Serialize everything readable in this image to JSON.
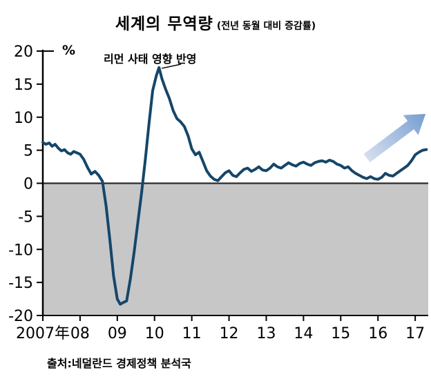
{
  "colors": {
    "line": "#15466a",
    "negative_region": "#c7c7c7",
    "axis": "#000000",
    "zero_line": "#2b2b2b",
    "arrow_tail": "#cdd9ec",
    "arrow_head": "#6e97cd",
    "text": "#000000"
  },
  "chart_data": {
    "type": "line",
    "title": "세계의 무역량",
    "subtitle": "(전년 동월 대비 증감률)",
    "ylabel_unit": "%",
    "annotation": "리먼 사태 영향 반영",
    "source": "출처:네덜란드 경제정책 분석국",
    "grid": false,
    "negative_region_shaded": true,
    "xlim": [
      2007,
      2017.35
    ],
    "ylim": [
      -20,
      20
    ],
    "yticks": [
      20,
      15,
      10,
      5,
      0,
      -5,
      -10,
      -15,
      -20
    ],
    "x_ticks": [
      {
        "pos": 2007,
        "label": "2007年"
      },
      {
        "pos": 2008,
        "label": "08"
      },
      {
        "pos": 2009,
        "label": "09"
      },
      {
        "pos": 2010,
        "label": "10"
      },
      {
        "pos": 2011,
        "label": "11"
      },
      {
        "pos": 2012,
        "label": "12"
      },
      {
        "pos": 2013,
        "label": "13"
      },
      {
        "pos": 2014,
        "label": "14"
      },
      {
        "pos": 2015,
        "label": "15"
      },
      {
        "pos": 2016,
        "label": "16"
      },
      {
        "pos": 2017,
        "label": "17"
      }
    ],
    "trend_arrow": {
      "from": [
        2015.7,
        3.8
      ],
      "to": [
        2017.28,
        10.5
      ]
    },
    "series": [
      {
        "name": "세계 무역량 전년 동월 대비 증감률(%)",
        "points": [
          [
            2007.0,
            6.2
          ],
          [
            2007.08,
            5.9
          ],
          [
            2007.17,
            6.1
          ],
          [
            2007.25,
            5.6
          ],
          [
            2007.33,
            5.9
          ],
          [
            2007.42,
            5.3
          ],
          [
            2007.5,
            4.9
          ],
          [
            2007.58,
            5.1
          ],
          [
            2007.67,
            4.6
          ],
          [
            2007.75,
            4.4
          ],
          [
            2007.83,
            4.8
          ],
          [
            2007.92,
            4.6
          ],
          [
            2008.0,
            4.4
          ],
          [
            2008.1,
            3.6
          ],
          [
            2008.2,
            2.4
          ],
          [
            2008.3,
            1.4
          ],
          [
            2008.4,
            1.8
          ],
          [
            2008.5,
            1.2
          ],
          [
            2008.6,
            0.3
          ],
          [
            2008.7,
            -3.5
          ],
          [
            2008.8,
            -8.5
          ],
          [
            2008.9,
            -14.0
          ],
          [
            2009.0,
            -17.5
          ],
          [
            2009.08,
            -18.3
          ],
          [
            2009.17,
            -18.0
          ],
          [
            2009.25,
            -17.8
          ],
          [
            2009.35,
            -14.5
          ],
          [
            2009.45,
            -10.5
          ],
          [
            2009.55,
            -6.0
          ],
          [
            2009.65,
            -1.5
          ],
          [
            2009.75,
            3.5
          ],
          [
            2009.85,
            9.0
          ],
          [
            2009.95,
            14.0
          ],
          [
            2010.05,
            16.3
          ],
          [
            2010.12,
            17.5
          ],
          [
            2010.2,
            15.8
          ],
          [
            2010.3,
            14.2
          ],
          [
            2010.4,
            12.8
          ],
          [
            2010.5,
            11.0
          ],
          [
            2010.6,
            9.8
          ],
          [
            2010.7,
            9.3
          ],
          [
            2010.8,
            8.6
          ],
          [
            2010.9,
            7.2
          ],
          [
            2011.0,
            5.2
          ],
          [
            2011.1,
            4.3
          ],
          [
            2011.2,
            4.7
          ],
          [
            2011.3,
            3.3
          ],
          [
            2011.4,
            1.9
          ],
          [
            2011.5,
            1.1
          ],
          [
            2011.6,
            0.6
          ],
          [
            2011.7,
            0.4
          ],
          [
            2011.8,
            1.0
          ],
          [
            2011.9,
            1.6
          ],
          [
            2012.0,
            1.9
          ],
          [
            2012.1,
            1.2
          ],
          [
            2012.2,
            1.0
          ],
          [
            2012.3,
            1.6
          ],
          [
            2012.4,
            2.1
          ],
          [
            2012.5,
            2.3
          ],
          [
            2012.6,
            1.8
          ],
          [
            2012.7,
            2.1
          ],
          [
            2012.8,
            2.5
          ],
          [
            2012.9,
            2.0
          ],
          [
            2013.0,
            1.9
          ],
          [
            2013.1,
            2.3
          ],
          [
            2013.2,
            2.9
          ],
          [
            2013.3,
            2.5
          ],
          [
            2013.4,
            2.3
          ],
          [
            2013.5,
            2.7
          ],
          [
            2013.6,
            3.1
          ],
          [
            2013.7,
            2.8
          ],
          [
            2013.8,
            2.6
          ],
          [
            2013.9,
            3.0
          ],
          [
            2014.0,
            3.2
          ],
          [
            2014.1,
            2.9
          ],
          [
            2014.2,
            2.7
          ],
          [
            2014.3,
            3.1
          ],
          [
            2014.4,
            3.3
          ],
          [
            2014.5,
            3.4
          ],
          [
            2014.6,
            3.2
          ],
          [
            2014.7,
            3.5
          ],
          [
            2014.8,
            3.3
          ],
          [
            2014.9,
            2.9
          ],
          [
            2015.0,
            2.7
          ],
          [
            2015.1,
            2.3
          ],
          [
            2015.2,
            2.5
          ],
          [
            2015.3,
            1.9
          ],
          [
            2015.4,
            1.5
          ],
          [
            2015.5,
            1.2
          ],
          [
            2015.6,
            0.9
          ],
          [
            2015.7,
            0.7
          ],
          [
            2015.8,
            1.0
          ],
          [
            2015.9,
            0.7
          ],
          [
            2016.0,
            0.6
          ],
          [
            2016.1,
            0.9
          ],
          [
            2016.2,
            1.5
          ],
          [
            2016.3,
            1.2
          ],
          [
            2016.4,
            1.1
          ],
          [
            2016.5,
            1.5
          ],
          [
            2016.6,
            1.9
          ],
          [
            2016.7,
            2.3
          ],
          [
            2016.8,
            2.7
          ],
          [
            2016.9,
            3.4
          ],
          [
            2017.0,
            4.3
          ],
          [
            2017.1,
            4.7
          ],
          [
            2017.2,
            5.0
          ],
          [
            2017.3,
            5.1
          ]
        ]
      }
    ]
  }
}
